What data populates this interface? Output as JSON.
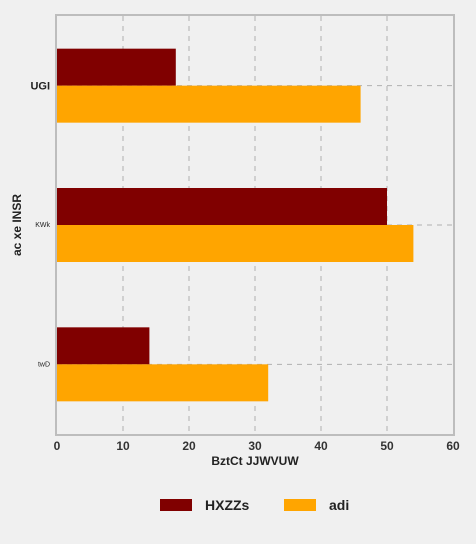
{
  "chart_data": {
    "type": "bar",
    "orientation": "horizontal",
    "categories": [
      "UGI",
      "KWk",
      "twD"
    ],
    "series": [
      {
        "name": "HXZZs",
        "color": "#800000",
        "values": [
          18,
          50,
          14
        ]
      },
      {
        "name": "adi",
        "color": "#ffa500",
        "values": [
          46,
          54,
          32
        ]
      }
    ],
    "xlabel": "BztCt JJWVUW",
    "ylabel": "ac xe INSR",
    "xlim": [
      0,
      60
    ],
    "xticks": [
      0,
      10,
      20,
      30,
      40,
      50,
      60
    ],
    "grid": true,
    "legend_position": "bottom"
  }
}
